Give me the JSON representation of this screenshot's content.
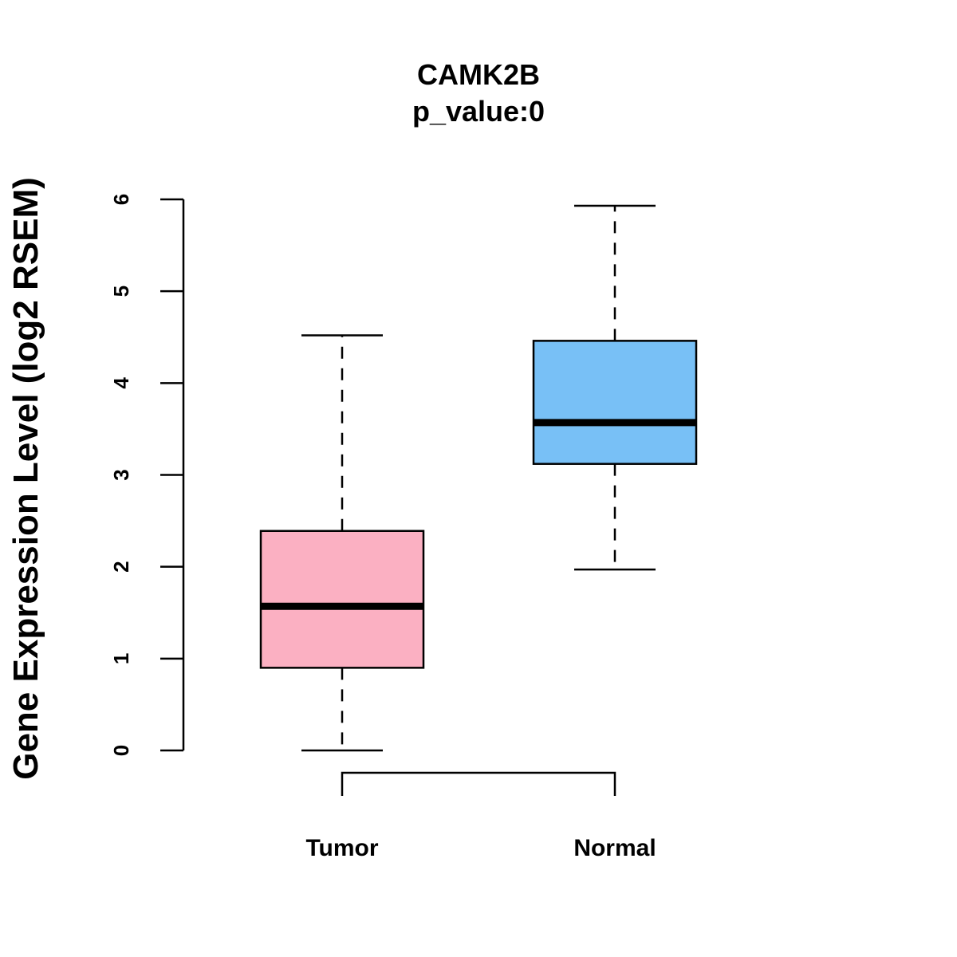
{
  "chart_data": {
    "type": "boxplot",
    "title": "CAMK2B",
    "subtitle": "p_value:0",
    "ylabel": "Gene Expression Level (log2 RSEM)",
    "xlabel": "",
    "ylim": [
      0,
      6
    ],
    "yticks": [
      "0",
      "1",
      "2",
      "3",
      "4",
      "5",
      "6"
    ],
    "categories": [
      "Tumor",
      "Normal"
    ],
    "boxes": [
      {
        "name": "Tumor",
        "whisker_low": 0.0,
        "q1": 0.9,
        "median": 1.57,
        "q3": 2.39,
        "whisker_high": 4.52,
        "color": "#FBB0C2"
      },
      {
        "name": "Normal",
        "whisker_low": 1.97,
        "q1": 3.12,
        "median": 3.57,
        "q3": 4.46,
        "whisker_high": 5.93,
        "color": "#78C0F6"
      }
    ],
    "comparison_bracket": [
      "Tumor",
      "Normal"
    ]
  }
}
